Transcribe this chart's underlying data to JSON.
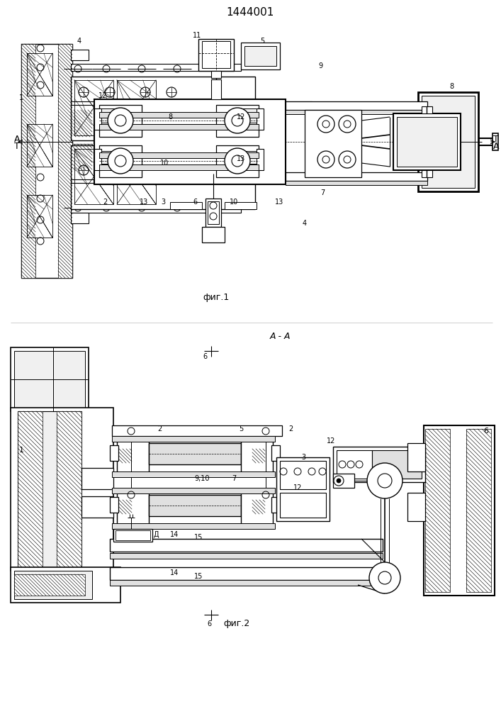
{
  "title": "1444001",
  "bg_color": "#ffffff",
  "line_color": "#1a1a1a",
  "fig1_caption": "фиг.1",
  "fig2_caption": "фиг.2",
  "section_label": "А - А",
  "fig_width": 7.07,
  "fig_height": 10.0,
  "gray1": "#c8c8c8",
  "gray2": "#e0e0e0",
  "gray3": "#f0f0f0"
}
